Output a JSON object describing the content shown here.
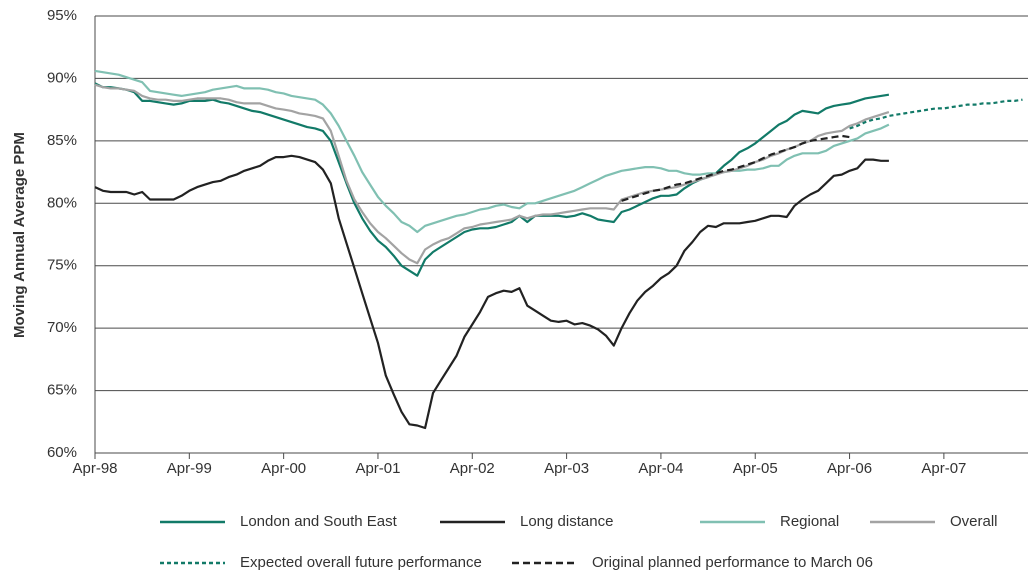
{
  "chart_data": {
    "type": "line",
    "y_label": "Moving Annual Average PPM",
    "categories": [
      "Apr-98",
      null,
      null,
      null,
      null,
      null,
      null,
      null,
      null,
      null,
      null,
      null,
      "Apr-99",
      null,
      null,
      null,
      null,
      null,
      null,
      null,
      null,
      null,
      null,
      null,
      "Apr-00",
      null,
      null,
      null,
      null,
      null,
      null,
      null,
      null,
      null,
      null,
      null,
      "Apr-01",
      null,
      null,
      null,
      null,
      null,
      null,
      null,
      null,
      null,
      null,
      null,
      "Apr-02",
      null,
      null,
      null,
      null,
      null,
      null,
      null,
      null,
      null,
      null,
      null,
      "Apr-03",
      null,
      null,
      null,
      null,
      null,
      null,
      null,
      null,
      null,
      null,
      null,
      "Apr-04",
      null,
      null,
      null,
      null,
      null,
      null,
      null,
      null,
      null,
      null,
      null,
      "Apr-05",
      null,
      null,
      null,
      null,
      null,
      null,
      null,
      null,
      null,
      null,
      null,
      "Apr-06",
      null,
      null,
      null,
      null,
      null,
      null,
      null,
      null,
      null,
      null,
      null,
      "Apr-07",
      null,
      null,
      null,
      null,
      null,
      null,
      null,
      null,
      null,
      null
    ],
    "ylim": [
      60,
      95
    ],
    "yticks": [
      {
        "value": 60,
        "label": "60%"
      },
      {
        "value": 65,
        "label": "65%"
      },
      {
        "value": 70,
        "label": "70%"
      },
      {
        "value": 75,
        "label": "75%"
      },
      {
        "value": 80,
        "label": "80%"
      },
      {
        "value": 85,
        "label": "85%"
      },
      {
        "value": 90,
        "label": "90%"
      },
      {
        "value": 95,
        "label": "95%"
      }
    ],
    "grid": true,
    "legend": "bottom",
    "series": [
      {
        "name": "London and South East",
        "color": "#127a68",
        "style": "solid",
        "values": [
          89.6,
          89.3,
          89.3,
          89.2,
          89.1,
          88.9,
          88.2,
          88.2,
          88.1,
          88.0,
          87.9,
          88.0,
          88.2,
          88.2,
          88.2,
          88.3,
          88.1,
          88.0,
          87.8,
          87.6,
          87.4,
          87.3,
          87.1,
          86.9,
          86.7,
          86.5,
          86.3,
          86.1,
          86.0,
          85.8,
          85.0,
          83.3,
          81.6,
          80.0,
          78.8,
          77.8,
          77.0,
          76.5,
          75.8,
          75.0,
          74.6,
          74.2,
          75.5,
          76.1,
          76.5,
          76.9,
          77.3,
          77.7,
          77.9,
          78.0,
          78.0,
          78.1,
          78.3,
          78.5,
          79.0,
          78.5,
          79.0,
          79.0,
          79.0,
          79.0,
          78.9,
          79.0,
          79.2,
          79.0,
          78.7,
          78.6,
          78.5,
          79.3,
          79.5,
          79.8,
          80.1,
          80.4,
          80.6,
          80.6,
          80.7,
          81.2,
          81.6,
          81.9,
          82.1,
          82.4,
          83.0,
          83.5,
          84.1,
          84.4,
          84.8,
          85.3,
          85.8,
          86.3,
          86.6,
          87.1,
          87.4,
          87.3,
          87.2,
          87.6,
          87.8,
          87.9,
          88.0,
          88.2,
          88.4,
          88.5,
          88.6,
          88.7,
          null,
          null,
          null,
          null,
          null,
          null,
          null,
          null,
          null,
          null,
          null,
          null,
          null,
          null,
          null,
          null,
          null
        ]
      },
      {
        "name": "Long distance",
        "color": "#222222",
        "style": "solid",
        "values": [
          81.3,
          81.0,
          80.9,
          80.9,
          80.9,
          80.7,
          80.9,
          80.3,
          80.3,
          80.3,
          80.3,
          80.6,
          81.0,
          81.3,
          81.5,
          81.7,
          81.8,
          82.1,
          82.3,
          82.6,
          82.8,
          83.0,
          83.4,
          83.7,
          83.7,
          83.8,
          83.7,
          83.5,
          83.3,
          82.7,
          81.6,
          78.8,
          76.8,
          74.8,
          72.8,
          70.8,
          68.8,
          66.2,
          64.7,
          63.3,
          62.3,
          62.2,
          62.0,
          64.8,
          65.8,
          66.8,
          67.8,
          69.3,
          70.3,
          71.3,
          72.5,
          72.8,
          73.0,
          72.9,
          73.2,
          71.8,
          71.4,
          71.0,
          70.6,
          70.5,
          70.6,
          70.3,
          70.4,
          70.2,
          69.9,
          69.4,
          68.6,
          70.0,
          71.2,
          72.2,
          72.9,
          73.4,
          74.0,
          74.4,
          75.0,
          76.2,
          76.9,
          77.7,
          78.2,
          78.1,
          78.4,
          78.4,
          78.4,
          78.5,
          78.6,
          78.8,
          79.0,
          79.0,
          78.9,
          79.8,
          80.3,
          80.7,
          81.0,
          81.6,
          82.2,
          82.3,
          82.6,
          82.8,
          83.5,
          83.5,
          83.4,
          83.4,
          null,
          null,
          null,
          null,
          null,
          null,
          null,
          null,
          null,
          null,
          null,
          null,
          null,
          null,
          null,
          null,
          null
        ]
      },
      {
        "name": "Regional",
        "color": "#80c0b2",
        "style": "solid",
        "values": [
          90.6,
          90.5,
          90.4,
          90.3,
          90.1,
          89.9,
          89.7,
          89.0,
          88.9,
          88.8,
          88.7,
          88.6,
          88.7,
          88.8,
          88.9,
          89.1,
          89.2,
          89.3,
          89.4,
          89.2,
          89.2,
          89.2,
          89.1,
          88.9,
          88.8,
          88.6,
          88.5,
          88.4,
          88.3,
          87.9,
          87.2,
          86.2,
          85.0,
          83.8,
          82.5,
          81.5,
          80.5,
          79.8,
          79.2,
          78.5,
          78.2,
          77.7,
          78.2,
          78.4,
          78.6,
          78.8,
          79.0,
          79.1,
          79.3,
          79.5,
          79.6,
          79.8,
          79.9,
          79.7,
          79.6,
          80.0,
          80.0,
          80.2,
          80.4,
          80.6,
          80.8,
          81.0,
          81.3,
          81.6,
          81.9,
          82.2,
          82.4,
          82.6,
          82.7,
          82.8,
          82.9,
          82.9,
          82.8,
          82.6,
          82.6,
          82.4,
          82.3,
          82.3,
          82.4,
          82.4,
          82.5,
          82.6,
          82.6,
          82.7,
          82.7,
          82.8,
          83.0,
          83.0,
          83.5,
          83.8,
          84.0,
          84.0,
          84.0,
          84.2,
          84.6,
          84.8,
          85.0,
          85.2,
          85.6,
          85.8,
          86.0,
          86.3,
          null,
          null,
          null,
          null,
          null,
          null,
          null,
          null,
          null,
          null,
          null,
          null,
          null,
          null,
          null,
          null,
          null
        ]
      },
      {
        "name": "Overall",
        "color": "#a3a3a3",
        "style": "solid",
        "values": [
          89.5,
          89.3,
          89.2,
          89.2,
          89.1,
          89.0,
          88.6,
          88.4,
          88.3,
          88.3,
          88.2,
          88.2,
          88.3,
          88.4,
          88.4,
          88.4,
          88.4,
          88.3,
          88.1,
          88.0,
          88.0,
          88.0,
          87.8,
          87.6,
          87.5,
          87.4,
          87.2,
          87.1,
          87.0,
          86.8,
          85.8,
          83.8,
          81.8,
          80.3,
          79.3,
          78.4,
          77.7,
          77.2,
          76.6,
          76.0,
          75.5,
          75.2,
          76.3,
          76.7,
          77.0,
          77.2,
          77.6,
          78.0,
          78.1,
          78.3,
          78.4,
          78.5,
          78.6,
          78.7,
          79.0,
          78.8,
          79.0,
          79.1,
          79.1,
          79.2,
          79.3,
          79.4,
          79.5,
          79.6,
          79.6,
          79.6,
          79.5,
          80.3,
          80.5,
          80.7,
          80.9,
          81.0,
          81.1,
          81.2,
          81.3,
          81.5,
          81.7,
          81.9,
          82.1,
          82.3,
          82.5,
          82.6,
          82.8,
          83.0,
          83.3,
          83.5,
          83.8,
          84.0,
          84.3,
          84.5,
          84.8,
          85.0,
          85.4,
          85.6,
          85.7,
          85.8,
          86.2,
          86.4,
          86.7,
          86.9,
          87.1,
          87.3,
          null,
          null,
          null,
          null,
          null,
          null,
          null,
          null,
          null,
          null,
          null,
          null,
          null,
          null,
          null,
          null,
          null
        ]
      },
      {
        "name": "Expected overall future performance",
        "color": "#127a68",
        "style": "dotted",
        "values": [
          null,
          null,
          null,
          null,
          null,
          null,
          null,
          null,
          null,
          null,
          null,
          null,
          null,
          null,
          null,
          null,
          null,
          null,
          null,
          null,
          null,
          null,
          null,
          null,
          null,
          null,
          null,
          null,
          null,
          null,
          null,
          null,
          null,
          null,
          null,
          null,
          null,
          null,
          null,
          null,
          null,
          null,
          null,
          null,
          null,
          null,
          null,
          null,
          null,
          null,
          null,
          null,
          null,
          null,
          null,
          null,
          null,
          null,
          null,
          null,
          null,
          null,
          null,
          null,
          null,
          null,
          null,
          null,
          null,
          null,
          null,
          null,
          null,
          null,
          null,
          null,
          null,
          null,
          null,
          null,
          null,
          null,
          null,
          null,
          null,
          null,
          null,
          null,
          null,
          null,
          null,
          null,
          null,
          null,
          null,
          null,
          86.0,
          86.2,
          86.5,
          86.7,
          86.8,
          87.0,
          87.1,
          87.2,
          87.3,
          87.4,
          87.5,
          87.6,
          87.6,
          87.7,
          87.8,
          87.9,
          87.9,
          88.0,
          88.0,
          88.1,
          88.2,
          88.2,
          88.3
        ]
      },
      {
        "name": "Original planned performance to March 06",
        "color": "#222222",
        "style": "dashed",
        "values": [
          null,
          null,
          null,
          null,
          null,
          null,
          null,
          null,
          null,
          null,
          null,
          null,
          null,
          null,
          null,
          null,
          null,
          null,
          null,
          null,
          null,
          null,
          null,
          null,
          null,
          null,
          null,
          null,
          null,
          null,
          null,
          null,
          null,
          null,
          null,
          null,
          null,
          null,
          null,
          null,
          null,
          null,
          null,
          null,
          null,
          null,
          null,
          null,
          null,
          null,
          null,
          null,
          null,
          null,
          null,
          null,
          null,
          null,
          null,
          null,
          null,
          null,
          null,
          null,
          null,
          null,
          null,
          80.2,
          80.4,
          80.6,
          80.8,
          81.0,
          81.1,
          81.3,
          81.5,
          81.6,
          81.8,
          82.0,
          82.2,
          82.4,
          82.6,
          82.7,
          82.9,
          83.1,
          83.3,
          83.6,
          83.9,
          84.1,
          84.3,
          84.5,
          84.8,
          85.0,
          85.1,
          85.2,
          85.3,
          85.4,
          85.3,
          null,
          null,
          null,
          null,
          null,
          null,
          null,
          null,
          null,
          null,
          null,
          null,
          null,
          null,
          null,
          null,
          null,
          null,
          null,
          null,
          null,
          null
        ]
      }
    ]
  }
}
